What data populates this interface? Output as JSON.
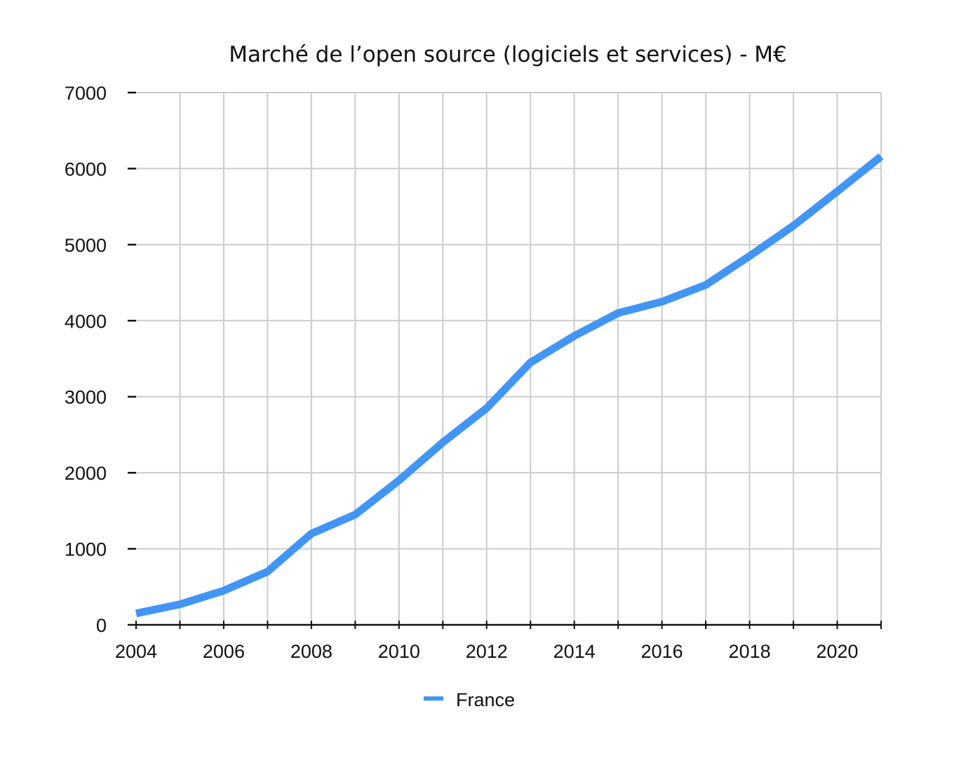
{
  "chart_data": {
    "type": "line",
    "title": "Marché de l’open source (logiciels et services) - M€",
    "xlabel": "",
    "ylabel": "",
    "x": [
      2004,
      2005,
      2006,
      2007,
      2008,
      2009,
      2010,
      2011,
      2012,
      2013,
      2014,
      2015,
      2016,
      2017,
      2018,
      2019,
      2020,
      2021
    ],
    "series": [
      {
        "name": "France",
        "color": "#4195f5",
        "values": [
          150,
          270,
          450,
          700,
          1200,
          1450,
          1900,
          2400,
          2850,
          3450,
          3800,
          4100,
          4250,
          4470,
          4850,
          5250,
          5700,
          6160
        ]
      }
    ],
    "xlim": [
      2004,
      2021
    ],
    "ylim": [
      0,
      7000
    ],
    "x_ticks": [
      "2004",
      "2006",
      "2008",
      "2010",
      "2012",
      "2014",
      "2016",
      "2018",
      "2020"
    ],
    "x_tick_values": [
      2004,
      2006,
      2008,
      2010,
      2012,
      2014,
      2016,
      2018,
      2020
    ],
    "y_ticks": [
      "0",
      "1000",
      "2000",
      "3000",
      "4000",
      "5000",
      "6000",
      "7000"
    ],
    "y_tick_values": [
      0,
      1000,
      2000,
      3000,
      4000,
      5000,
      6000,
      7000
    ],
    "grid": true,
    "legend_position": "bottom-center",
    "colors": {
      "grid": "#cccccc",
      "axis": "#111111",
      "text": "#111111"
    }
  }
}
